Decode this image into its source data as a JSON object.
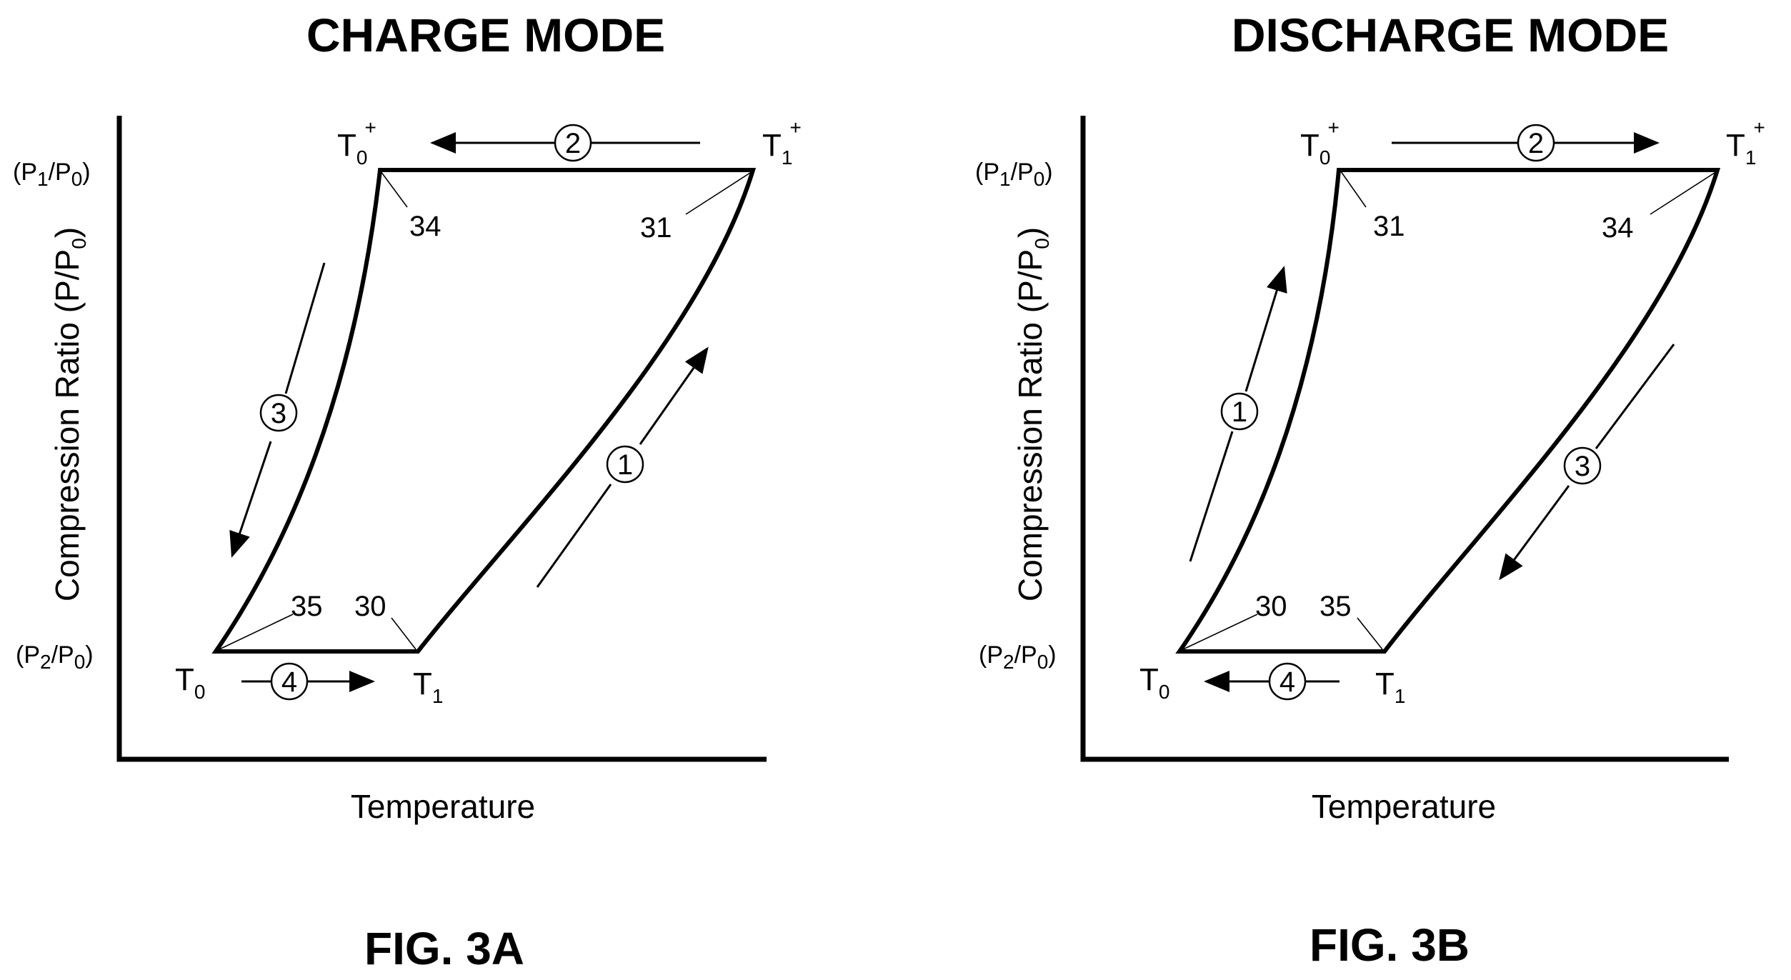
{
  "panels": [
    {
      "id": "charge",
      "title": "CHARGE MODE",
      "figure_label": "FIG. 3A",
      "y_axis_label": "Compression Ratio (P/P",
      "y_axis_label_sub": "0",
      "y_axis_label_end": ")",
      "x_axis_label": "Temperature",
      "y_tick_top": {
        "open": "(P",
        "sub1": "1",
        "mid": "/P",
        "sub2": "0",
        "close": ")"
      },
      "y_tick_bottom": {
        "open": "(P",
        "sub1": "2",
        "mid": "/P",
        "sub2": "0",
        "close": ")"
      },
      "state_labels": {
        "t0": {
          "base": "T",
          "sub": "0"
        },
        "t1": {
          "base": "T",
          "sub": "1"
        },
        "t0p": {
          "base": "T",
          "sub": "0",
          "sup": "+"
        },
        "t1p": {
          "base": "T",
          "sub": "1",
          "sup": "+"
        }
      },
      "reference_numerals": {
        "top_left": "34",
        "top_right": "31",
        "bottom_left": "35",
        "bottom_right": "30"
      },
      "process_numbers": {
        "p1": "1",
        "p2": "2",
        "p3": "3",
        "p4": "4"
      }
    },
    {
      "id": "discharge",
      "title": "DISCHARGE MODE",
      "figure_label": "FIG. 3B",
      "y_axis_label": "Compression Ratio (P/P",
      "y_axis_label_sub": "0",
      "y_axis_label_end": ")",
      "x_axis_label": "Temperature",
      "y_tick_top": {
        "open": "(P",
        "sub1": "1",
        "mid": "/P",
        "sub2": "0",
        "close": ")"
      },
      "y_tick_bottom": {
        "open": "(P",
        "sub1": "2",
        "mid": "/P",
        "sub2": "0",
        "close": ")"
      },
      "state_labels": {
        "t0": {
          "base": "T",
          "sub": "0"
        },
        "t1": {
          "base": "T",
          "sub": "1"
        },
        "t0p": {
          "base": "T",
          "sub": "0",
          "sup": "+"
        },
        "t1p": {
          "base": "T",
          "sub": "1",
          "sup": "+"
        }
      },
      "reference_numerals": {
        "top_left": "31",
        "top_right": "34",
        "bottom_left": "30",
        "bottom_right": "35"
      },
      "process_numbers": {
        "p1": "1",
        "p2": "2",
        "p3": "3",
        "p4": "4"
      }
    }
  ]
}
